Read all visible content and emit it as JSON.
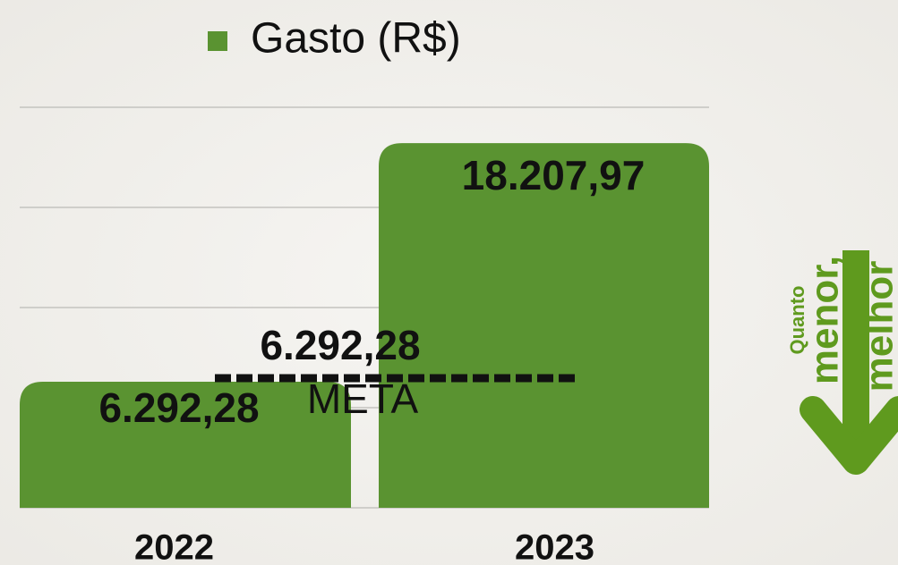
{
  "chart_data": {
    "type": "bar",
    "categories": [
      "2022",
      "2023"
    ],
    "series": [
      {
        "name": "Gasto (R$)",
        "color": "#5a9331",
        "values": [
          6292.28,
          18207.97
        ],
        "value_labels": [
          "6.292,28",
          "18.207,97"
        ]
      }
    ],
    "ylim": [
      0,
      20000
    ],
    "yticks": [
      0,
      5000,
      10000,
      15000,
      20000
    ],
    "grid": true,
    "legend": "top",
    "target": {
      "value": 6292.28,
      "value_label": "6.292,28",
      "label": "META"
    },
    "side_note": [
      "Quanto",
      "menor,",
      "melhor"
    ],
    "side_note_color": "#5f9a1e"
  }
}
